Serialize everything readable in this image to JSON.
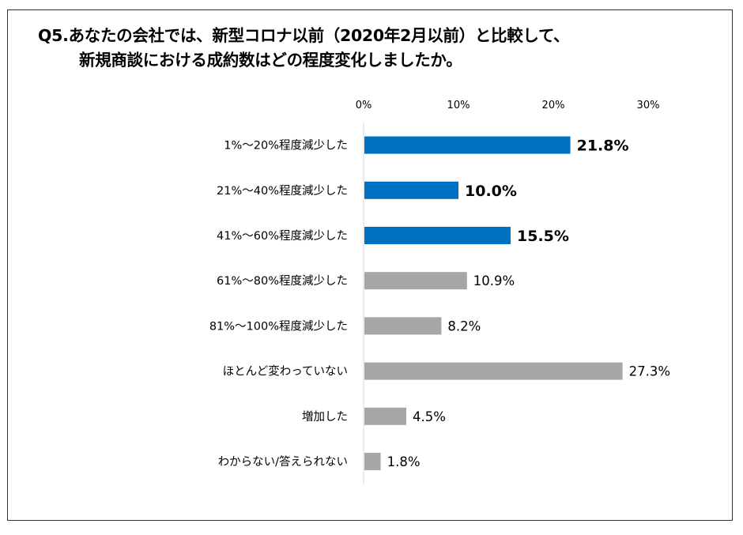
{
  "title": {
    "line1": "Q5.あなたの会社では、新型コロナ以前（2020年2月以前）と比較して、",
    "line2": "新規商談における成約数はどの程度変化しましたか。"
  },
  "chart_data": {
    "type": "bar",
    "orientation": "horizontal",
    "categories": [
      "1%～20%程度減少した",
      "21%～40%程度減少した",
      "41%～60%程度減少した",
      "61%～80%程度減少した",
      "81%～100%程度減少した",
      "ほとんど変わっていない",
      "増加した",
      "わからない/答えられない"
    ],
    "values": [
      21.8,
      10.0,
      15.5,
      10.9,
      8.2,
      27.3,
      4.5,
      1.8
    ],
    "value_labels": [
      "21.8%",
      "10.0%",
      "15.5%",
      "10.9%",
      "8.2%",
      "27.3%",
      "4.5%",
      "1.8%"
    ],
    "highlighted": [
      true,
      true,
      true,
      false,
      false,
      false,
      false,
      false
    ],
    "xlim": [
      0,
      30
    ],
    "xticks": [
      0,
      10,
      20,
      30
    ],
    "xtick_labels": [
      "0%",
      "10%",
      "20%",
      "30%"
    ],
    "axis_position": "top",
    "grid": false,
    "colors": {
      "highlight": "#0070c0",
      "default": "#a6a6a6"
    }
  }
}
